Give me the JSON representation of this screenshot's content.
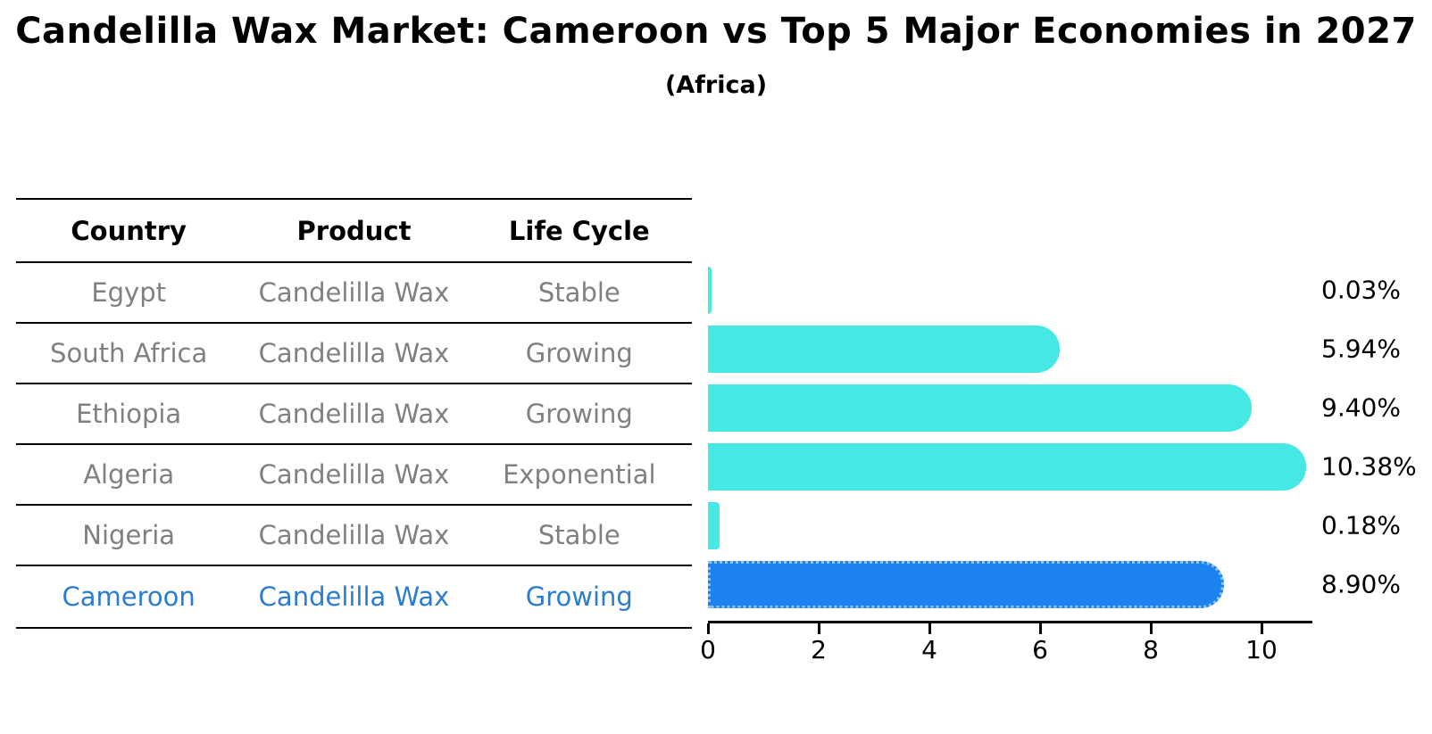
{
  "title": "Candelilla Wax Market: Cameroon vs Top 5 Major Economies in 2027",
  "subtitle": "(Africa)",
  "table": {
    "headers": [
      "Country",
      "Product",
      "Life Cycle"
    ],
    "rows": [
      {
        "country": "Egypt",
        "product": "Candelilla Wax",
        "life_cycle": "Stable"
      },
      {
        "country": "South Africa",
        "product": "Candelilla Wax",
        "life_cycle": "Growing"
      },
      {
        "country": "Ethiopia",
        "product": "Candelilla Wax",
        "life_cycle": "Growing"
      },
      {
        "country": "Algeria",
        "product": "Candelilla Wax",
        "life_cycle": "Exponential"
      },
      {
        "country": "Nigeria",
        "product": "Candelilla Wax",
        "life_cycle": "Stable"
      },
      {
        "country": "Cameroon",
        "product": "Candelilla Wax",
        "life_cycle": "Growing"
      }
    ]
  },
  "chart_data": {
    "type": "bar",
    "orientation": "horizontal",
    "title": "Candelilla Wax Market: Cameroon vs Top 5 Major Economies in 2027",
    "subtitle": "(Africa)",
    "categories": [
      "Egypt",
      "South Africa",
      "Ethiopia",
      "Algeria",
      "Nigeria",
      "Cameroon"
    ],
    "values": [
      0.03,
      5.94,
      9.4,
      10.38,
      0.18,
      8.9
    ],
    "value_labels": [
      "0.03%",
      "5.94%",
      "9.40%",
      "10.38%",
      "0.18%",
      "8.90%"
    ],
    "unit": "percent",
    "highlight_category": "Cameroon",
    "xlim": [
      0,
      10.9
    ],
    "x_ticks": [
      0,
      2,
      4,
      6,
      8,
      10
    ],
    "grid": false,
    "legend": "none",
    "bar_color": "#46E8E4",
    "highlight_bar_color": "#1C82F0",
    "highlight_edge_color": "#8CC4F5",
    "highlight_text_color": "#2B7CD3",
    "muted_text_color": "#808080"
  }
}
